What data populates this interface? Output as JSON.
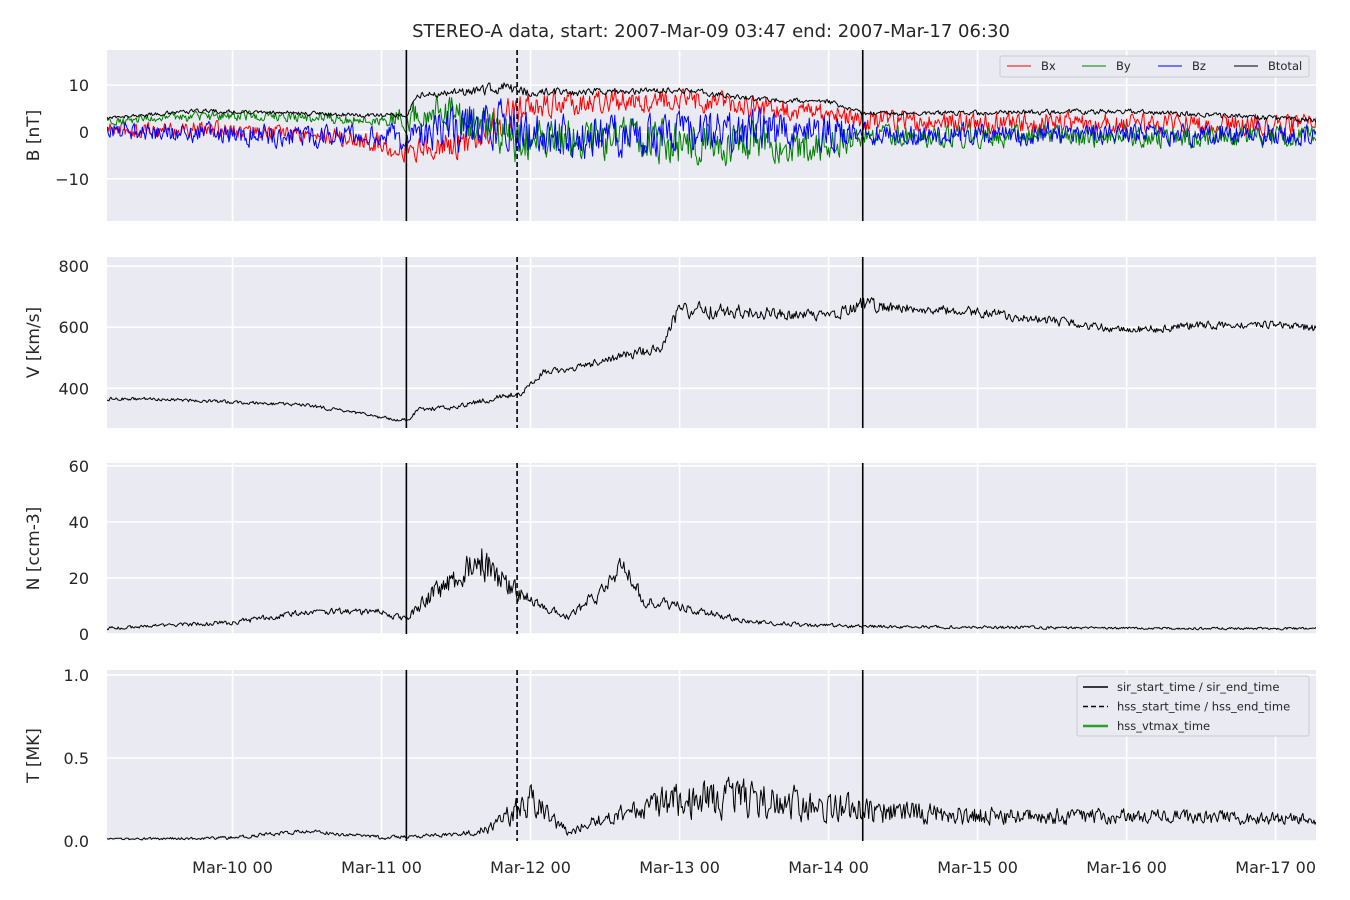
{
  "chart_data": {
    "type": "line",
    "title": "STEREO-A data, start: 2007-Mar-09 03:47  end: 2007-Mar-17 06:30",
    "x_range": [
      "2007-03-09 03:47",
      "2007-03-17 06:30"
    ],
    "x_ticks": [
      "Mar-10 00",
      "Mar-11 00",
      "Mar-12 00",
      "Mar-13 00",
      "Mar-14 00",
      "Mar-15 00",
      "Mar-16 00",
      "Mar-17 00"
    ],
    "grid": true,
    "events": [
      {
        "name": "sir_start_time / sir_end_time",
        "style": "solid",
        "color": "#000000",
        "times": [
          "2007-03-11 04:00",
          "2007-03-14 05:30"
        ]
      },
      {
        "name": "hss_start_time / hss_end_time",
        "style": "dashed",
        "color": "#000000",
        "times": [
          "2007-03-11 21:50"
        ]
      },
      {
        "name": "hss_vtmax_time",
        "style": "solid",
        "color": "#2ca02c",
        "times": []
      }
    ],
    "panels": [
      {
        "ylabel": "B [nT]",
        "ylim": [
          -19,
          17.5
        ],
        "yticks": [
          10,
          0,
          -10
        ],
        "ytick_labels": [
          "10",
          "0",
          "−10"
        ],
        "legend": "top-right",
        "series": [
          {
            "name": "Bx",
            "color": "#ff0000",
            "x": [
              "2007-03-09 03:47",
              "2007-03-10 00:00",
              "2007-03-10 12:00",
              "2007-03-11 00:00",
              "2007-03-11 04:00",
              "2007-03-11 09:00",
              "2007-03-11 14:00",
              "2007-03-11 20:00",
              "2007-03-12 00:00",
              "2007-03-12 12:00",
              "2007-03-13 00:00",
              "2007-03-13 12:00",
              "2007-03-14 00:00",
              "2007-03-14 05:30",
              "2007-03-15 00:00",
              "2007-03-16 00:00",
              "2007-03-17 06:30"
            ],
            "y": [
              0.5,
              0.5,
              -0.5,
              -2.5,
              -4,
              -3,
              -2,
              3,
              5.5,
              6.5,
              7,
              5.5,
              4,
              2.5,
              2,
              1.5,
              1.5
            ],
            "noise": [
              1.5,
              1.5,
              1.5,
              2,
              2,
              2.5,
              3,
              3.5,
              2.5,
              2,
              2,
              2,
              2,
              2,
              2,
              2,
              2
            ]
          },
          {
            "name": "By",
            "color": "#008000",
            "x": [
              "2007-03-09 03:47",
              "2007-03-10 00:00",
              "2007-03-10 12:00",
              "2007-03-11 00:00",
              "2007-03-11 04:00",
              "2007-03-11 09:00",
              "2007-03-11 14:00",
              "2007-03-11 20:00",
              "2007-03-12 00:00",
              "2007-03-12 12:00",
              "2007-03-13 00:00",
              "2007-03-13 12:00",
              "2007-03-14 00:00",
              "2007-03-14 05:30",
              "2007-03-15 00:00",
              "2007-03-16 00:00",
              "2007-03-17 06:30"
            ],
            "y": [
              2.5,
              3.5,
              3,
              2.5,
              3,
              5,
              2,
              -2,
              -1,
              -2,
              -2.5,
              -2.5,
              -2,
              -1,
              -1,
              -1,
              -1
            ],
            "noise": [
              0.8,
              1,
              1,
              1,
              2.5,
              3.5,
              4.5,
              4.5,
              4,
              4,
              4,
              4,
              3.5,
              2,
              2,
              2,
              2
            ]
          },
          {
            "name": "Bz",
            "color": "#0000ff",
            "x": [
              "2007-03-09 03:47",
              "2007-03-10 00:00",
              "2007-03-10 12:00",
              "2007-03-11 00:00",
              "2007-03-11 04:00",
              "2007-03-11 09:00",
              "2007-03-11 14:00",
              "2007-03-11 20:00",
              "2007-03-12 00:00",
              "2007-03-12 12:00",
              "2007-03-13 00:00",
              "2007-03-13 12:00",
              "2007-03-14 00:00",
              "2007-03-14 05:30",
              "2007-03-15 00:00",
              "2007-03-16 00:00",
              "2007-03-17 06:30"
            ],
            "y": [
              0.5,
              -0.5,
              -1,
              -1,
              -1,
              0,
              1,
              1,
              -1,
              -1,
              0,
              0,
              0,
              -0.5,
              -0.5,
              -0.5,
              -0.5
            ],
            "noise": [
              1.5,
              2,
              2,
              2,
              2.5,
              3.5,
              4.5,
              4.5,
              4,
              4,
              4,
              4,
              3.5,
              2,
              2,
              2,
              2
            ]
          },
          {
            "name": "Btotal",
            "color": "#000000",
            "x": [
              "2007-03-09 03:47",
              "2007-03-09 18:00",
              "2007-03-10 12:00",
              "2007-03-11 00:00",
              "2007-03-11 04:00",
              "2007-03-11 06:00",
              "2007-03-11 14:00",
              "2007-03-11 20:00",
              "2007-03-12 00:00",
              "2007-03-12 12:00",
              "2007-03-13 00:00",
              "2007-03-13 12:00",
              "2007-03-14 00:00",
              "2007-03-14 05:30",
              "2007-03-15 00:00",
              "2007-03-16 00:00",
              "2007-03-17 06:30"
            ],
            "y": [
              3,
              4.5,
              4,
              3.5,
              3.5,
              8,
              8.5,
              9.5,
              8.5,
              8.5,
              9,
              7,
              6.5,
              4,
              4,
              4.5,
              2.5
            ],
            "noise": [
              0.3,
              0.4,
              0.4,
              0.4,
              0.5,
              0.6,
              0.8,
              1.2,
              0.8,
              0.7,
              0.6,
              0.5,
              0.5,
              0.4,
              0.5,
              0.5,
              0.5
            ]
          }
        ]
      },
      {
        "ylabel": "V [km/s]",
        "ylim": [
          270,
          830
        ],
        "yticks": [
          800,
          600,
          400
        ],
        "ytick_labels": [
          "800",
          "600",
          "400"
        ],
        "series": [
          {
            "name": "",
            "color": "#000000",
            "x": [
              "2007-03-09 03:47",
              "2007-03-09 12:00",
              "2007-03-10 00:00",
              "2007-03-10 12:00",
              "2007-03-11 00:00",
              "2007-03-11 04:00",
              "2007-03-11 06:00",
              "2007-03-11 12:00",
              "2007-03-11 20:00",
              "2007-03-11 23:00",
              "2007-03-12 02:00",
              "2007-03-12 06:00",
              "2007-03-12 12:00",
              "2007-03-12 18:00",
              "2007-03-12 21:00",
              "2007-03-13 00:00",
              "2007-03-13 12:00",
              "2007-03-13 20:00",
              "2007-03-14 00:00",
              "2007-03-14 05:30",
              "2007-03-14 12:00",
              "2007-03-15 00:00",
              "2007-03-15 12:00",
              "2007-03-16 00:00",
              "2007-03-16 12:00",
              "2007-03-17 00:00",
              "2007-03-17 06:30"
            ],
            "y": [
              365,
              365,
              355,
              345,
              305,
              295,
              330,
              340,
              375,
              390,
              455,
              460,
              490,
              520,
              530,
              660,
              650,
              640,
              635,
              675,
              665,
              650,
              620,
              590,
              605,
              610,
              595
            ],
            "noise": [
              5,
              5,
              5,
              5,
              5,
              5,
              6,
              8,
              8,
              10,
              10,
              8,
              12,
              15,
              15,
              25,
              20,
              15,
              15,
              20,
              15,
              15,
              12,
              12,
              12,
              10,
              12
            ]
          }
        ]
      },
      {
        "ylabel": "N [ccm-3]",
        "ylim": [
          0,
          61
        ],
        "yticks": [
          60,
          40,
          20,
          0
        ],
        "ytick_labels": [
          "60",
          "40",
          "20",
          "0"
        ],
        "series": [
          {
            "name": "",
            "color": "#000000",
            "x": [
              "2007-03-09 03:47",
              "2007-03-09 12:00",
              "2007-03-10 00:00",
              "2007-03-10 12:00",
              "2007-03-11 00:00",
              "2007-03-11 04:00",
              "2007-03-11 08:00",
              "2007-03-11 12:00",
              "2007-03-11 16:00",
              "2007-03-11 20:00",
              "2007-03-12 00:00",
              "2007-03-12 06:00",
              "2007-03-12 12:00",
              "2007-03-12 15:00",
              "2007-03-12 18:00",
              "2007-03-13 00:00",
              "2007-03-13 12:00",
              "2007-03-14 00:00",
              "2007-03-14 12:00",
              "2007-03-15 00:00",
              "2007-03-16 00:00",
              "2007-03-17 06:30"
            ],
            "y": [
              2,
              3,
              4,
              8,
              8,
              5,
              14,
              20,
              27,
              18,
              12,
              6,
              16,
              25,
              12,
              10,
              4,
              3,
              2.5,
              2.5,
              2,
              2
            ],
            "noise": [
              0.5,
              0.5,
              0.8,
              1,
              1,
              1,
              3,
              4,
              6,
              4,
              2,
              1,
              3,
              3,
              2,
              1.5,
              0.8,
              0.6,
              0.5,
              0.5,
              0.4,
              0.4
            ]
          }
        ]
      },
      {
        "ylabel": "T [MK]",
        "ylim": [
          0,
          1.03
        ],
        "yticks": [
          1.0,
          0.5,
          0.0
        ],
        "ytick_labels": [
          "1.0",
          "0.5",
          "0.0"
        ],
        "legend": "top-right",
        "series": [
          {
            "name": "",
            "color": "#000000",
            "x": [
              "2007-03-09 03:47",
              "2007-03-10 00:00",
              "2007-03-10 12:00",
              "2007-03-11 00:00",
              "2007-03-11 12:00",
              "2007-03-11 18:00",
              "2007-03-11 21:00",
              "2007-03-12 00:00",
              "2007-03-12 06:00",
              "2007-03-12 12:00",
              "2007-03-12 18:00",
              "2007-03-13 00:00",
              "2007-03-13 12:00",
              "2007-03-14 00:00",
              "2007-03-14 12:00",
              "2007-03-15 00:00",
              "2007-03-16 00:00",
              "2007-03-17 06:30"
            ],
            "y": [
              0.01,
              0.02,
              0.06,
              0.02,
              0.04,
              0.08,
              0.2,
              0.25,
              0.05,
              0.15,
              0.2,
              0.25,
              0.25,
              0.2,
              0.17,
              0.15,
              0.15,
              0.13
            ],
            "noise": [
              0.005,
              0.01,
              0.01,
              0.01,
              0.01,
              0.03,
              0.08,
              0.08,
              0.02,
              0.04,
              0.06,
              0.1,
              0.1,
              0.08,
              0.06,
              0.05,
              0.04,
              0.03
            ]
          }
        ]
      }
    ]
  }
}
